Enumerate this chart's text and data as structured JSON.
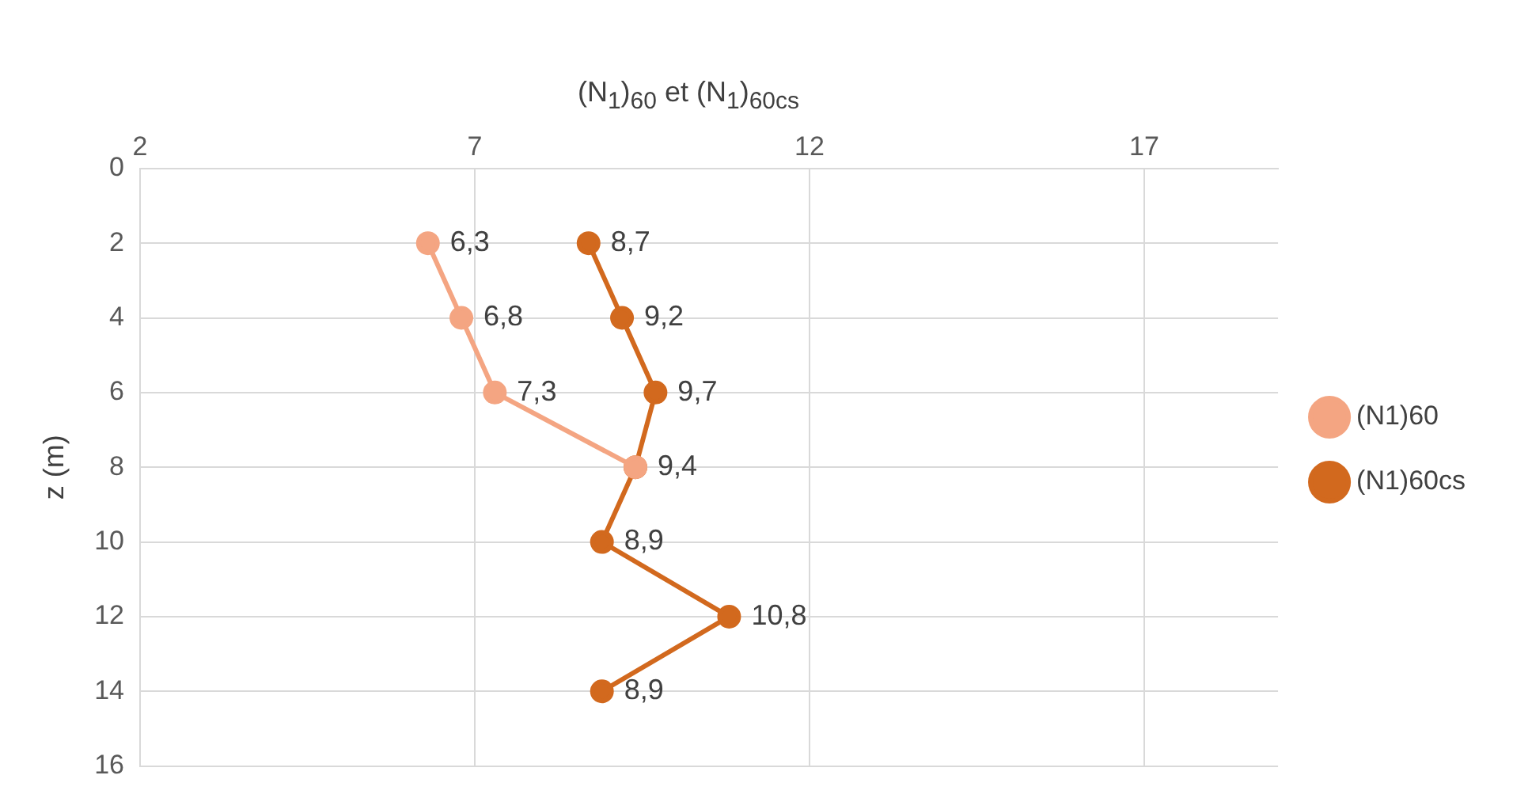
{
  "chart_data": {
    "type": "line",
    "xlabel": "(N$_{1}$)$_{60}$ et (N$_{1}$)$_{60cs}$",
    "ylabel": "z (m)",
    "xlim": [
      2,
      19
    ],
    "xticks": [
      2,
      7,
      12,
      17
    ],
    "ylim": [
      16,
      0
    ],
    "yticks": [
      0,
      2,
      4,
      6,
      8,
      10,
      12,
      14,
      16
    ],
    "orientation": "horizontal",
    "grid": true,
    "legend": "right",
    "marker": "circle",
    "line_style": "solid",
    "series": [
      {
        "name": "(N1)60",
        "color": "#f4a582",
        "x": [
          2,
          4,
          6,
          8
        ],
        "values": [
          6.3,
          6.8,
          7.3,
          9.4
        ],
        "value_labels": [
          "6,3",
          "6,8",
          "7,3",
          null
        ]
      },
      {
        "name": "(N1)60cs",
        "color": "#d2691e",
        "x": [
          2,
          4,
          6,
          8,
          10,
          12,
          14
        ],
        "values": [
          8.7,
          9.2,
          9.7,
          9.4,
          8.9,
          10.8,
          8.9
        ],
        "value_labels": [
          "8,7",
          "9,2",
          "9,7",
          "9,4",
          "8,9",
          "10,8",
          "8,9"
        ]
      }
    ]
  }
}
